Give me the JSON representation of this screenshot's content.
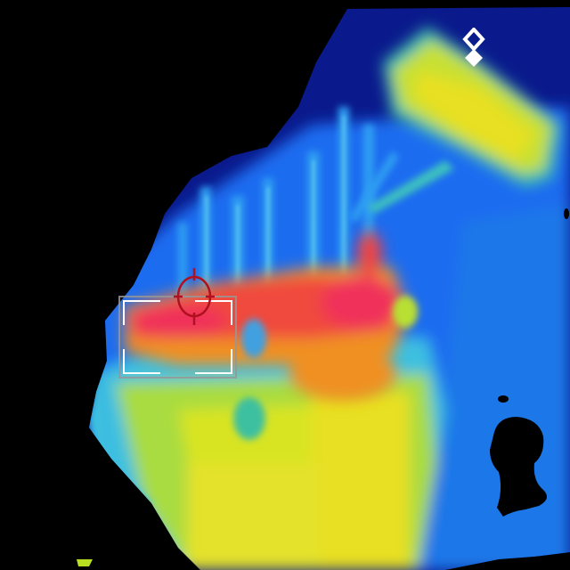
{
  "view": {
    "mode": "thermal",
    "palette": "rainbow",
    "colors": {
      "background": "#000000",
      "cold": "#0a1a8c",
      "cool": "#1e6cf0",
      "mid": "#3ec0e0",
      "warm": "#c8e030",
      "hot": "#f0e020",
      "hotter": "#f09020",
      "hottest": "#f0305a"
    }
  },
  "overlay": {
    "roi_icon": "roi-bracket-frame",
    "roi_color": "#ffffff",
    "reticle_icon": "crosshair-circle-icon",
    "reticle_color": "#b01020",
    "nav_icon": "diamond-navigation-icon"
  }
}
